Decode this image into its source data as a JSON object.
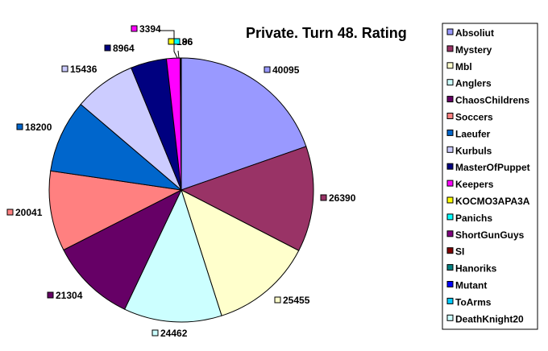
{
  "chart_data": {
    "type": "pie",
    "title": "Private. Turn 48. Rating",
    "legend_position": "right",
    "slices": [
      {
        "name": "Absoliut",
        "value": 40095,
        "color": "#9999ff"
      },
      {
        "name": "Mystery",
        "value": 26390,
        "color": "#993366"
      },
      {
        "name": "Mbl",
        "value": 25455,
        "color": "#ffffcc"
      },
      {
        "name": "Anglers",
        "value": 24462,
        "color": "#ccffff"
      },
      {
        "name": "ChaosChildrens",
        "value": 21304,
        "color": "#660066"
      },
      {
        "name": "Soccers",
        "value": 20041,
        "color": "#ff8080"
      },
      {
        "name": "Laeufer",
        "value": 18200,
        "color": "#0066cc"
      },
      {
        "name": "Kurbuls",
        "value": 15436,
        "color": "#ccccff"
      },
      {
        "name": "MasterOfPuppet",
        "value": 8964,
        "color": "#000080"
      },
      {
        "name": "Keepers",
        "value": 3394,
        "color": "#ff00ff"
      },
      {
        "name": "KOCMO3APA3A",
        "value": 186,
        "color": "#ffff00"
      },
      {
        "name": "Panichs",
        "value": 96,
        "color": "#00ffff"
      },
      {
        "name": "ShortGunGuys",
        "value": 0,
        "color": "#800080"
      },
      {
        "name": "SI",
        "value": 0,
        "color": "#800000"
      },
      {
        "name": "Hanoriks",
        "value": 0,
        "color": "#008080"
      },
      {
        "name": "Mutant",
        "value": 0,
        "color": "#0000ff"
      },
      {
        "name": "ToArms",
        "value": 0,
        "color": "#00ccff"
      },
      {
        "name": "DeathKnight20",
        "value": 0,
        "color": "#ccffff"
      }
    ],
    "label_texts": {
      "Absoliut": "40095",
      "Mystery": "26390",
      "Mbl": "25455",
      "Anglers": "24462",
      "ChaosChildrens": "21304",
      "Soccers": "20041",
      "Laeufer": "18200",
      "Kurbuls": "15436",
      "MasterOfPuppet": "8964",
      "Keepers": "3394",
      "KOCMO3APA3A": "186",
      "Panichs": "96"
    }
  }
}
